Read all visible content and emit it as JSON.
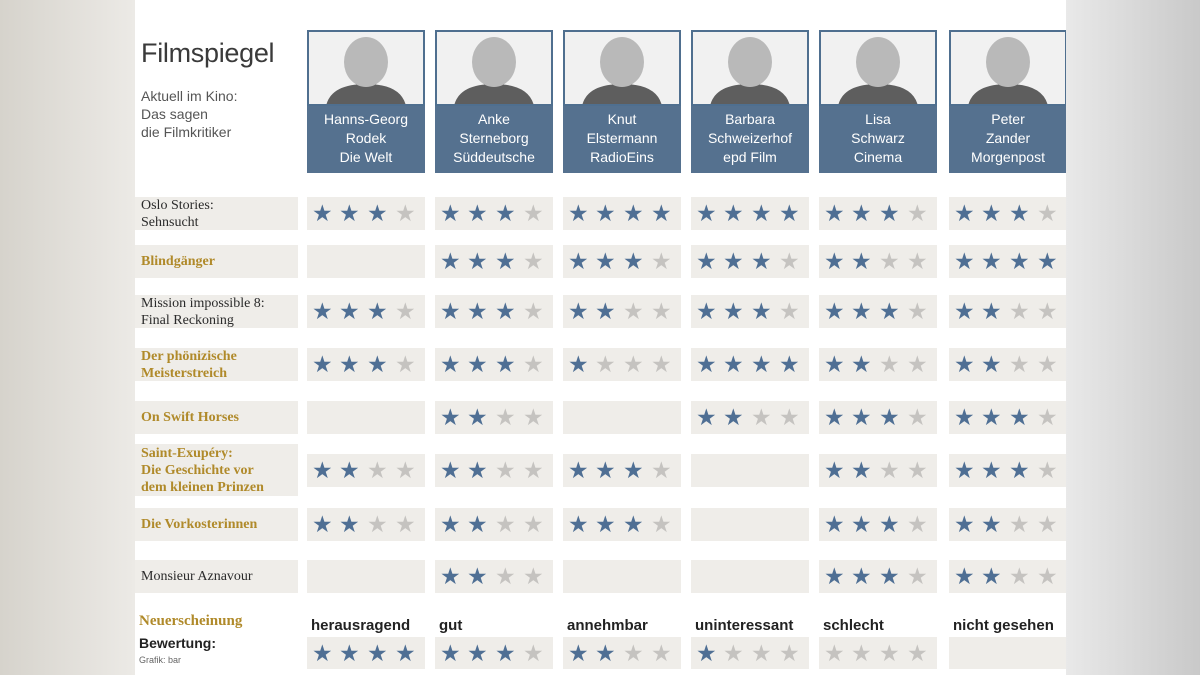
{
  "title": "Filmspiegel",
  "subtitle": "Aktuell im Kino:\nDas sagen\ndie Filmkritiker",
  "colors": {
    "star_on": "#4f6f94",
    "star_off": "#c5c3c0",
    "header_bg": "#55718f",
    "gold_text": "#b08a2a"
  },
  "critics": [
    {
      "name": "Hanns-Georg\nRodek\nDie Welt"
    },
    {
      "name": "Anke\nSterneborg\nSüddeutsche"
    },
    {
      "name": "Knut\nElstermann\nRadioEins"
    },
    {
      "name": "Barbara\nSchweizerhof\nepd Film"
    },
    {
      "name": "Lisa\nSchwarz\nCinema"
    },
    {
      "name": "Peter\nZander\nMorgenpost"
    }
  ],
  "legend": {
    "new_release": "Neuerscheinung",
    "rating_label": "Bewertung:",
    "credit": "Grafik: bar",
    "levels": [
      {
        "label": "herausragend",
        "stars": 4
      },
      {
        "label": "gut",
        "stars": 3
      },
      {
        "label": "annehmbar",
        "stars": 2
      },
      {
        "label": "uninteressant",
        "stars": 1
      },
      {
        "label": "schlecht",
        "stars": 0
      },
      {
        "label": "nicht gesehen",
        "stars": null
      }
    ]
  },
  "chart_data": {
    "type": "table",
    "title": "Filmspiegel",
    "max_stars": 4,
    "columns": [
      "Hanns-Georg Rodek Die Welt",
      "Anke Sterneborg Süddeutsche",
      "Knut Elstermann RadioEins",
      "Barbara Schweizerhof epd Film",
      "Lisa Schwarz Cinema",
      "Peter Zander Morgenpost"
    ],
    "rows": [
      {
        "title": "Oslo Stories:\nSehnsucht",
        "new_release": false,
        "ratings": [
          3,
          3,
          4,
          4,
          3,
          3
        ]
      },
      {
        "title": "Blindgänger",
        "new_release": true,
        "ratings": [
          null,
          3,
          3,
          3,
          2,
          4
        ]
      },
      {
        "title": "Mission impossible 8:\nFinal Reckoning",
        "new_release": false,
        "ratings": [
          3,
          3,
          2,
          3,
          3,
          2
        ]
      },
      {
        "title": "Der phönizische\nMeisterstreich",
        "new_release": true,
        "ratings": [
          3,
          3,
          1,
          4,
          2,
          2
        ]
      },
      {
        "title": "On Swift Horses",
        "new_release": true,
        "ratings": [
          null,
          2,
          null,
          2,
          3,
          3
        ]
      },
      {
        "title": "Saint-Exupéry:\nDie Geschichte vor\ndem kleinen Prinzen",
        "new_release": true,
        "ratings": [
          2,
          2,
          3,
          null,
          2,
          3
        ]
      },
      {
        "title": "Die Vorkosterinnen",
        "new_release": true,
        "ratings": [
          2,
          2,
          3,
          null,
          3,
          2
        ]
      },
      {
        "title": "Monsieur Aznavour",
        "new_release": false,
        "ratings": [
          null,
          2,
          null,
          null,
          3,
          2
        ]
      }
    ]
  }
}
